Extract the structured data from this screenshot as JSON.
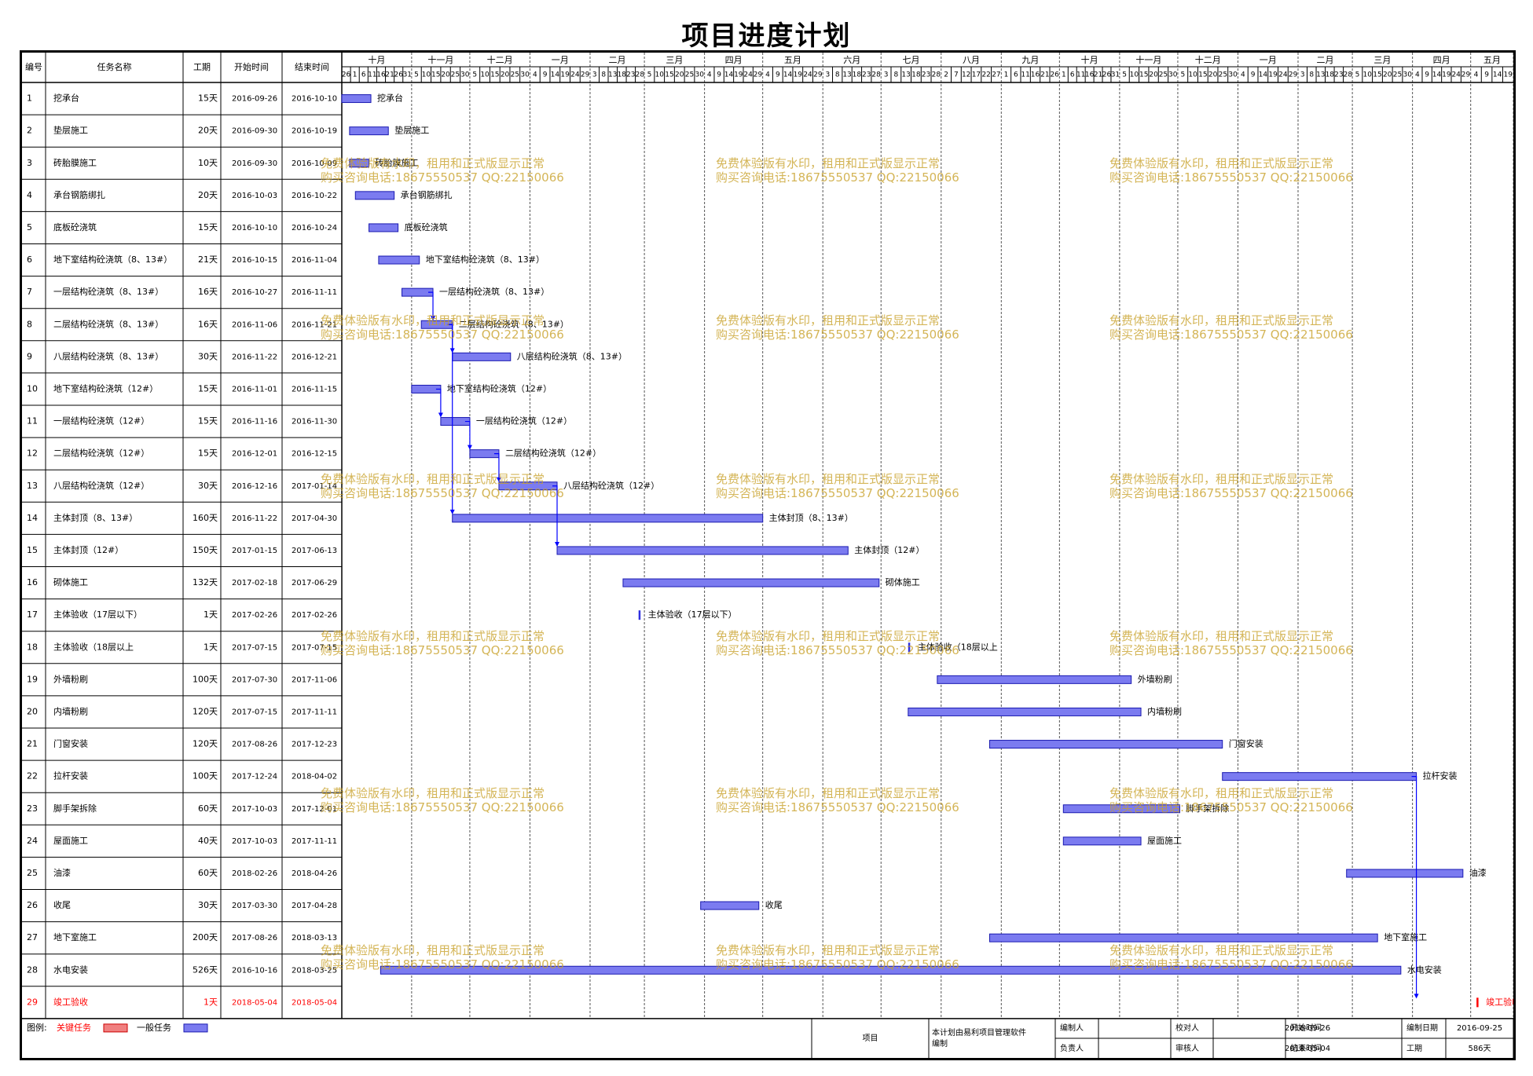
{
  "title": "项目进度计划",
  "columns": {
    "id": "编号",
    "name": "任务名称",
    "duration": "工期",
    "start": "开始时间",
    "end": "结束时间"
  },
  "timeline": {
    "months": [
      "十月",
      "十一月",
      "十二月",
      "一月",
      "二月",
      "三月",
      "四月",
      "五月",
      "六月",
      "七月",
      "八月",
      "九月",
      "十月",
      "十一月",
      "十二月",
      "一月",
      "二月",
      "三月",
      "四月",
      "五月"
    ],
    "month_days": [
      [
        "26",
        "1",
        "6",
        "11",
        "16",
        "21",
        "26",
        "31"
      ],
      [
        "5",
        "10",
        "15",
        "20",
        "25",
        "30"
      ],
      [
        "5",
        "10",
        "15",
        "20",
        "25",
        "30"
      ],
      [
        "4",
        "9",
        "14",
        "19",
        "24",
        "29"
      ],
      [
        "3",
        "8",
        "13",
        "18",
        "23",
        "28"
      ],
      [
        "5",
        "10",
        "15",
        "20",
        "25",
        "30"
      ],
      [
        "4",
        "9",
        "14",
        "19",
        "24",
        "29"
      ],
      [
        "4",
        "9",
        "14",
        "19",
        "24",
        "29"
      ],
      [
        "3",
        "8",
        "13",
        "18",
        "23",
        "28"
      ],
      [
        "3",
        "8",
        "13",
        "18",
        "23",
        "28"
      ],
      [
        "2",
        "7",
        "12",
        "17",
        "22",
        "27"
      ],
      [
        "1",
        "6",
        "11",
        "16",
        "21",
        "26"
      ],
      [
        "1",
        "6",
        "11",
        "16",
        "21",
        "26",
        "31"
      ],
      [
        "5",
        "10",
        "15",
        "20",
        "25",
        "30"
      ],
      [
        "5",
        "10",
        "15",
        "20",
        "25",
        "30"
      ],
      [
        "4",
        "9",
        "14",
        "19",
        "24",
        "29"
      ],
      [
        "3",
        "8",
        "13",
        "18",
        "23",
        "28"
      ],
      [
        "5",
        "10",
        "15",
        "20",
        "25",
        "30"
      ],
      [
        "4",
        "9",
        "14",
        "19",
        "24",
        "29"
      ],
      [
        "4",
        "9",
        "14",
        "19"
      ]
    ]
  },
  "tasks": [
    {
      "id": "1",
      "name": "挖承台",
      "duration": "15天",
      "start": "2016-09-26",
      "end": "2016-10-10",
      "critical": false
    },
    {
      "id": "2",
      "name": "垫层施工",
      "duration": "20天",
      "start": "2016-09-30",
      "end": "2016-10-19",
      "critical": false
    },
    {
      "id": "3",
      "name": "砖胎膜施工",
      "duration": "10天",
      "start": "2016-09-30",
      "end": "2016-10-09",
      "critical": false
    },
    {
      "id": "4",
      "name": "承台钢筋绑扎",
      "duration": "20天",
      "start": "2016-10-03",
      "end": "2016-10-22",
      "critical": false
    },
    {
      "id": "5",
      "name": "底板砼浇筑",
      "duration": "15天",
      "start": "2016-10-10",
      "end": "2016-10-24",
      "critical": false
    },
    {
      "id": "6",
      "name": "地下室结构砼浇筑（8、13#）",
      "duration": "21天",
      "start": "2016-10-15",
      "end": "2016-11-04",
      "critical": false
    },
    {
      "id": "7",
      "name": "一层结构砼浇筑（8、13#）",
      "duration": "16天",
      "start": "2016-10-27",
      "end": "2016-11-11",
      "critical": false
    },
    {
      "id": "8",
      "name": "二层结构砼浇筑（8、13#）",
      "duration": "16天",
      "start": "2016-11-06",
      "end": "2016-11-21",
      "critical": false
    },
    {
      "id": "9",
      "name": "八层结构砼浇筑（8、13#）",
      "duration": "30天",
      "start": "2016-11-22",
      "end": "2016-12-21",
      "critical": false
    },
    {
      "id": "10",
      "name": "地下室结构砼浇筑（12#）",
      "duration": "15天",
      "start": "2016-11-01",
      "end": "2016-11-15",
      "critical": false
    },
    {
      "id": "11",
      "name": "一层结构砼浇筑（12#）",
      "duration": "15天",
      "start": "2016-11-16",
      "end": "2016-11-30",
      "critical": false
    },
    {
      "id": "12",
      "name": "二层结构砼浇筑（12#）",
      "duration": "15天",
      "start": "2016-12-01",
      "end": "2016-12-15",
      "critical": false
    },
    {
      "id": "13",
      "name": "八层结构砼浇筑（12#）",
      "duration": "30天",
      "start": "2016-12-16",
      "end": "2017-01-14",
      "critical": false
    },
    {
      "id": "14",
      "name": "主体封顶（8、13#）",
      "duration": "160天",
      "start": "2016-11-22",
      "end": "2017-04-30",
      "critical": false
    },
    {
      "id": "15",
      "name": "主体封顶（12#）",
      "duration": "150天",
      "start": "2017-01-15",
      "end": "2017-06-13",
      "critical": false
    },
    {
      "id": "16",
      "name": "砌体施工",
      "duration": "132天",
      "start": "2017-02-18",
      "end": "2017-06-29",
      "critical": false
    },
    {
      "id": "17",
      "name": "主体验收（17层以下）",
      "duration": "1天",
      "start": "2017-02-26",
      "end": "2017-02-26",
      "critical": false
    },
    {
      "id": "18",
      "name": "主体验收（18层以上",
      "duration": "1天",
      "start": "2017-07-15",
      "end": "2017-07-15",
      "critical": false
    },
    {
      "id": "19",
      "name": "外墙粉刷",
      "duration": "100天",
      "start": "2017-07-30",
      "end": "2017-11-06",
      "critical": false
    },
    {
      "id": "20",
      "name": "内墙粉刷",
      "duration": "120天",
      "start": "2017-07-15",
      "end": "2017-11-11",
      "critical": false
    },
    {
      "id": "21",
      "name": "门窗安装",
      "duration": "120天",
      "start": "2017-08-26",
      "end": "2017-12-23",
      "critical": false
    },
    {
      "id": "22",
      "name": "拉杆安装",
      "duration": "100天",
      "start": "2017-12-24",
      "end": "2018-04-02",
      "critical": false
    },
    {
      "id": "23",
      "name": "脚手架拆除",
      "duration": "60天",
      "start": "2017-10-03",
      "end": "2017-12-01",
      "critical": false
    },
    {
      "id": "24",
      "name": "屋面施工",
      "duration": "40天",
      "start": "2017-10-03",
      "end": "2017-11-11",
      "critical": false
    },
    {
      "id": "25",
      "name": "油漆",
      "duration": "60天",
      "start": "2018-02-26",
      "end": "2018-04-26",
      "critical": false
    },
    {
      "id": "26",
      "name": "收尾",
      "duration": "30天",
      "start": "2017-03-30",
      "end": "2017-04-28",
      "critical": false
    },
    {
      "id": "27",
      "name": "地下室施工",
      "duration": "200天",
      "start": "2017-08-26",
      "end": "2018-03-13",
      "critical": false
    },
    {
      "id": "28",
      "name": "水电安装",
      "duration": "526天",
      "start": "2016-10-16",
      "end": "2018-03-25",
      "critical": false
    },
    {
      "id": "29",
      "name": "竣工验收",
      "duration": "1天",
      "start": "2018-05-04",
      "end": "2018-05-04",
      "critical": true
    }
  ],
  "links": [
    {
      "from": "7",
      "to": "8"
    },
    {
      "from": "8",
      "to": "9"
    },
    {
      "from": "8",
      "to": "14"
    },
    {
      "from": "10",
      "to": "11"
    },
    {
      "from": "11",
      "to": "12"
    },
    {
      "from": "12",
      "to": "13"
    },
    {
      "from": "13",
      "to": "15"
    },
    {
      "from": "22",
      "to": "29"
    }
  ],
  "legend": {
    "label": "图例:",
    "critical_label": "关键任务",
    "normal_label": "一般任务"
  },
  "footer": {
    "project_label": "项目",
    "note": "本计划由易利项目管理软件编制",
    "prepared_by": "编制人",
    "checked_by": "校对人",
    "responsible": "负责人",
    "reviewer": "审核人",
    "start_label": "开始时间",
    "start_value": "2016-09-26",
    "prepared_date_label": "编制日期",
    "prepared_date_value": "2016-09-25",
    "end_label": "结束时间",
    "end_value": "2018-05-04",
    "duration_label": "工期",
    "duration_value": "586天"
  },
  "watermark": {
    "line1": "免费体验版有水印，租用和正式版显示正常",
    "line2": "购买咨询电话:18675550537 QQ:22150066"
  },
  "colors": {
    "normal_bar": "#7b7bf0",
    "critical": "#ff0000",
    "legend_critical": "#f08080",
    "link": "#0000ff"
  },
  "chart_data": {
    "type": "gantt",
    "title": "项目进度计划",
    "x_range": [
      "2016-09-26",
      "2018-05-23"
    ],
    "tasks": [
      {
        "name": "挖承台",
        "start": "2016-09-26",
        "end": "2016-10-10"
      },
      {
        "name": "垫层施工",
        "start": "2016-09-30",
        "end": "2016-10-19"
      },
      {
        "name": "砖胎膜施工",
        "start": "2016-09-30",
        "end": "2016-10-09"
      },
      {
        "name": "承台钢筋绑扎",
        "start": "2016-10-03",
        "end": "2016-10-22"
      },
      {
        "name": "底板砼浇筑",
        "start": "2016-10-10",
        "end": "2016-10-24"
      },
      {
        "name": "地下室结构砼浇筑（8、13#）",
        "start": "2016-10-15",
        "end": "2016-11-04"
      },
      {
        "name": "一层结构砼浇筑（8、13#）",
        "start": "2016-10-27",
        "end": "2016-11-11"
      },
      {
        "name": "二层结构砼浇筑（8、13#）",
        "start": "2016-11-06",
        "end": "2016-11-21"
      },
      {
        "name": "八层结构砼浇筑（8、13#）",
        "start": "2016-11-22",
        "end": "2016-12-21"
      },
      {
        "name": "地下室结构砼浇筑（12#）",
        "start": "2016-11-01",
        "end": "2016-11-15"
      },
      {
        "name": "一层结构砼浇筑（12#）",
        "start": "2016-11-16",
        "end": "2016-11-30"
      },
      {
        "name": "二层结构砼浇筑（12#）",
        "start": "2016-12-01",
        "end": "2016-12-15"
      },
      {
        "name": "八层结构砼浇筑（12#）",
        "start": "2016-12-16",
        "end": "2017-01-14"
      },
      {
        "name": "主体封顶（8、13#）",
        "start": "2016-11-22",
        "end": "2017-04-30"
      },
      {
        "name": "主体封顶（12#）",
        "start": "2017-01-15",
        "end": "2017-06-13"
      },
      {
        "name": "砌体施工",
        "start": "2017-02-18",
        "end": "2017-06-29"
      },
      {
        "name": "主体验收（17层以下）",
        "start": "2017-02-26",
        "end": "2017-02-26"
      },
      {
        "name": "主体验收（18层以上",
        "start": "2017-07-15",
        "end": "2017-07-15"
      },
      {
        "name": "外墙粉刷",
        "start": "2017-07-30",
        "end": "2017-11-06"
      },
      {
        "name": "内墙粉刷",
        "start": "2017-07-15",
        "end": "2017-11-11"
      },
      {
        "name": "门窗安装",
        "start": "2017-08-26",
        "end": "2017-12-23"
      },
      {
        "name": "拉杆安装",
        "start": "2017-12-24",
        "end": "2018-04-02"
      },
      {
        "name": "脚手架拆除",
        "start": "2017-10-03",
        "end": "2017-12-01"
      },
      {
        "name": "屋面施工",
        "start": "2017-10-03",
        "end": "2017-11-11"
      },
      {
        "name": "油漆",
        "start": "2018-02-26",
        "end": "2018-04-26"
      },
      {
        "name": "收尾",
        "start": "2017-03-30",
        "end": "2017-04-28"
      },
      {
        "name": "地下室施工",
        "start": "2017-08-26",
        "end": "2018-03-13"
      },
      {
        "name": "水电安装",
        "start": "2016-10-16",
        "end": "2018-03-25"
      },
      {
        "name": "竣工验收",
        "start": "2018-05-04",
        "end": "2018-05-04"
      }
    ]
  }
}
